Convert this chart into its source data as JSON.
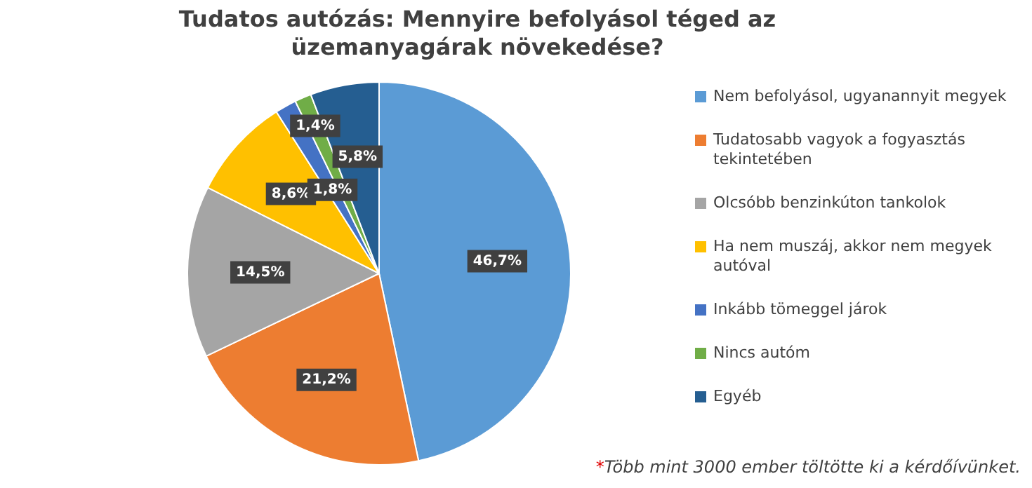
{
  "chart_data": {
    "type": "pie",
    "title": "Tudatos autózás: Mennyire befolyásol téged az üzemanyagárak növekedése?",
    "categories": [
      "Nem befolyásol, ugyanannyit megyek",
      "Tudatosabb vagyok a fogyasztás tekintetében",
      "Olcsóbb benzinkúton tankolok",
      "Ha nem muszáj, akkor nem megyek autóval",
      "Inkább tömeggel járok",
      "Nincs autóm",
      "Egyéb"
    ],
    "values": [
      46.7,
      21.2,
      14.5,
      8.6,
      1.8,
      1.4,
      5.8
    ],
    "colors": [
      "#5b9bd5",
      "#ed7d31",
      "#a5a5a5",
      "#ffc000",
      "#4472c4",
      "#70ad47",
      "#255e91"
    ],
    "value_labels": [
      "46,7%",
      "21,2%",
      "14,5%",
      "8,6%",
      "1,8%",
      "1,4%",
      "5,8%"
    ],
    "legend": "right",
    "annotations": [
      "*Több mint 3000 ember töltötte ki a kérdőívünket."
    ]
  }
}
